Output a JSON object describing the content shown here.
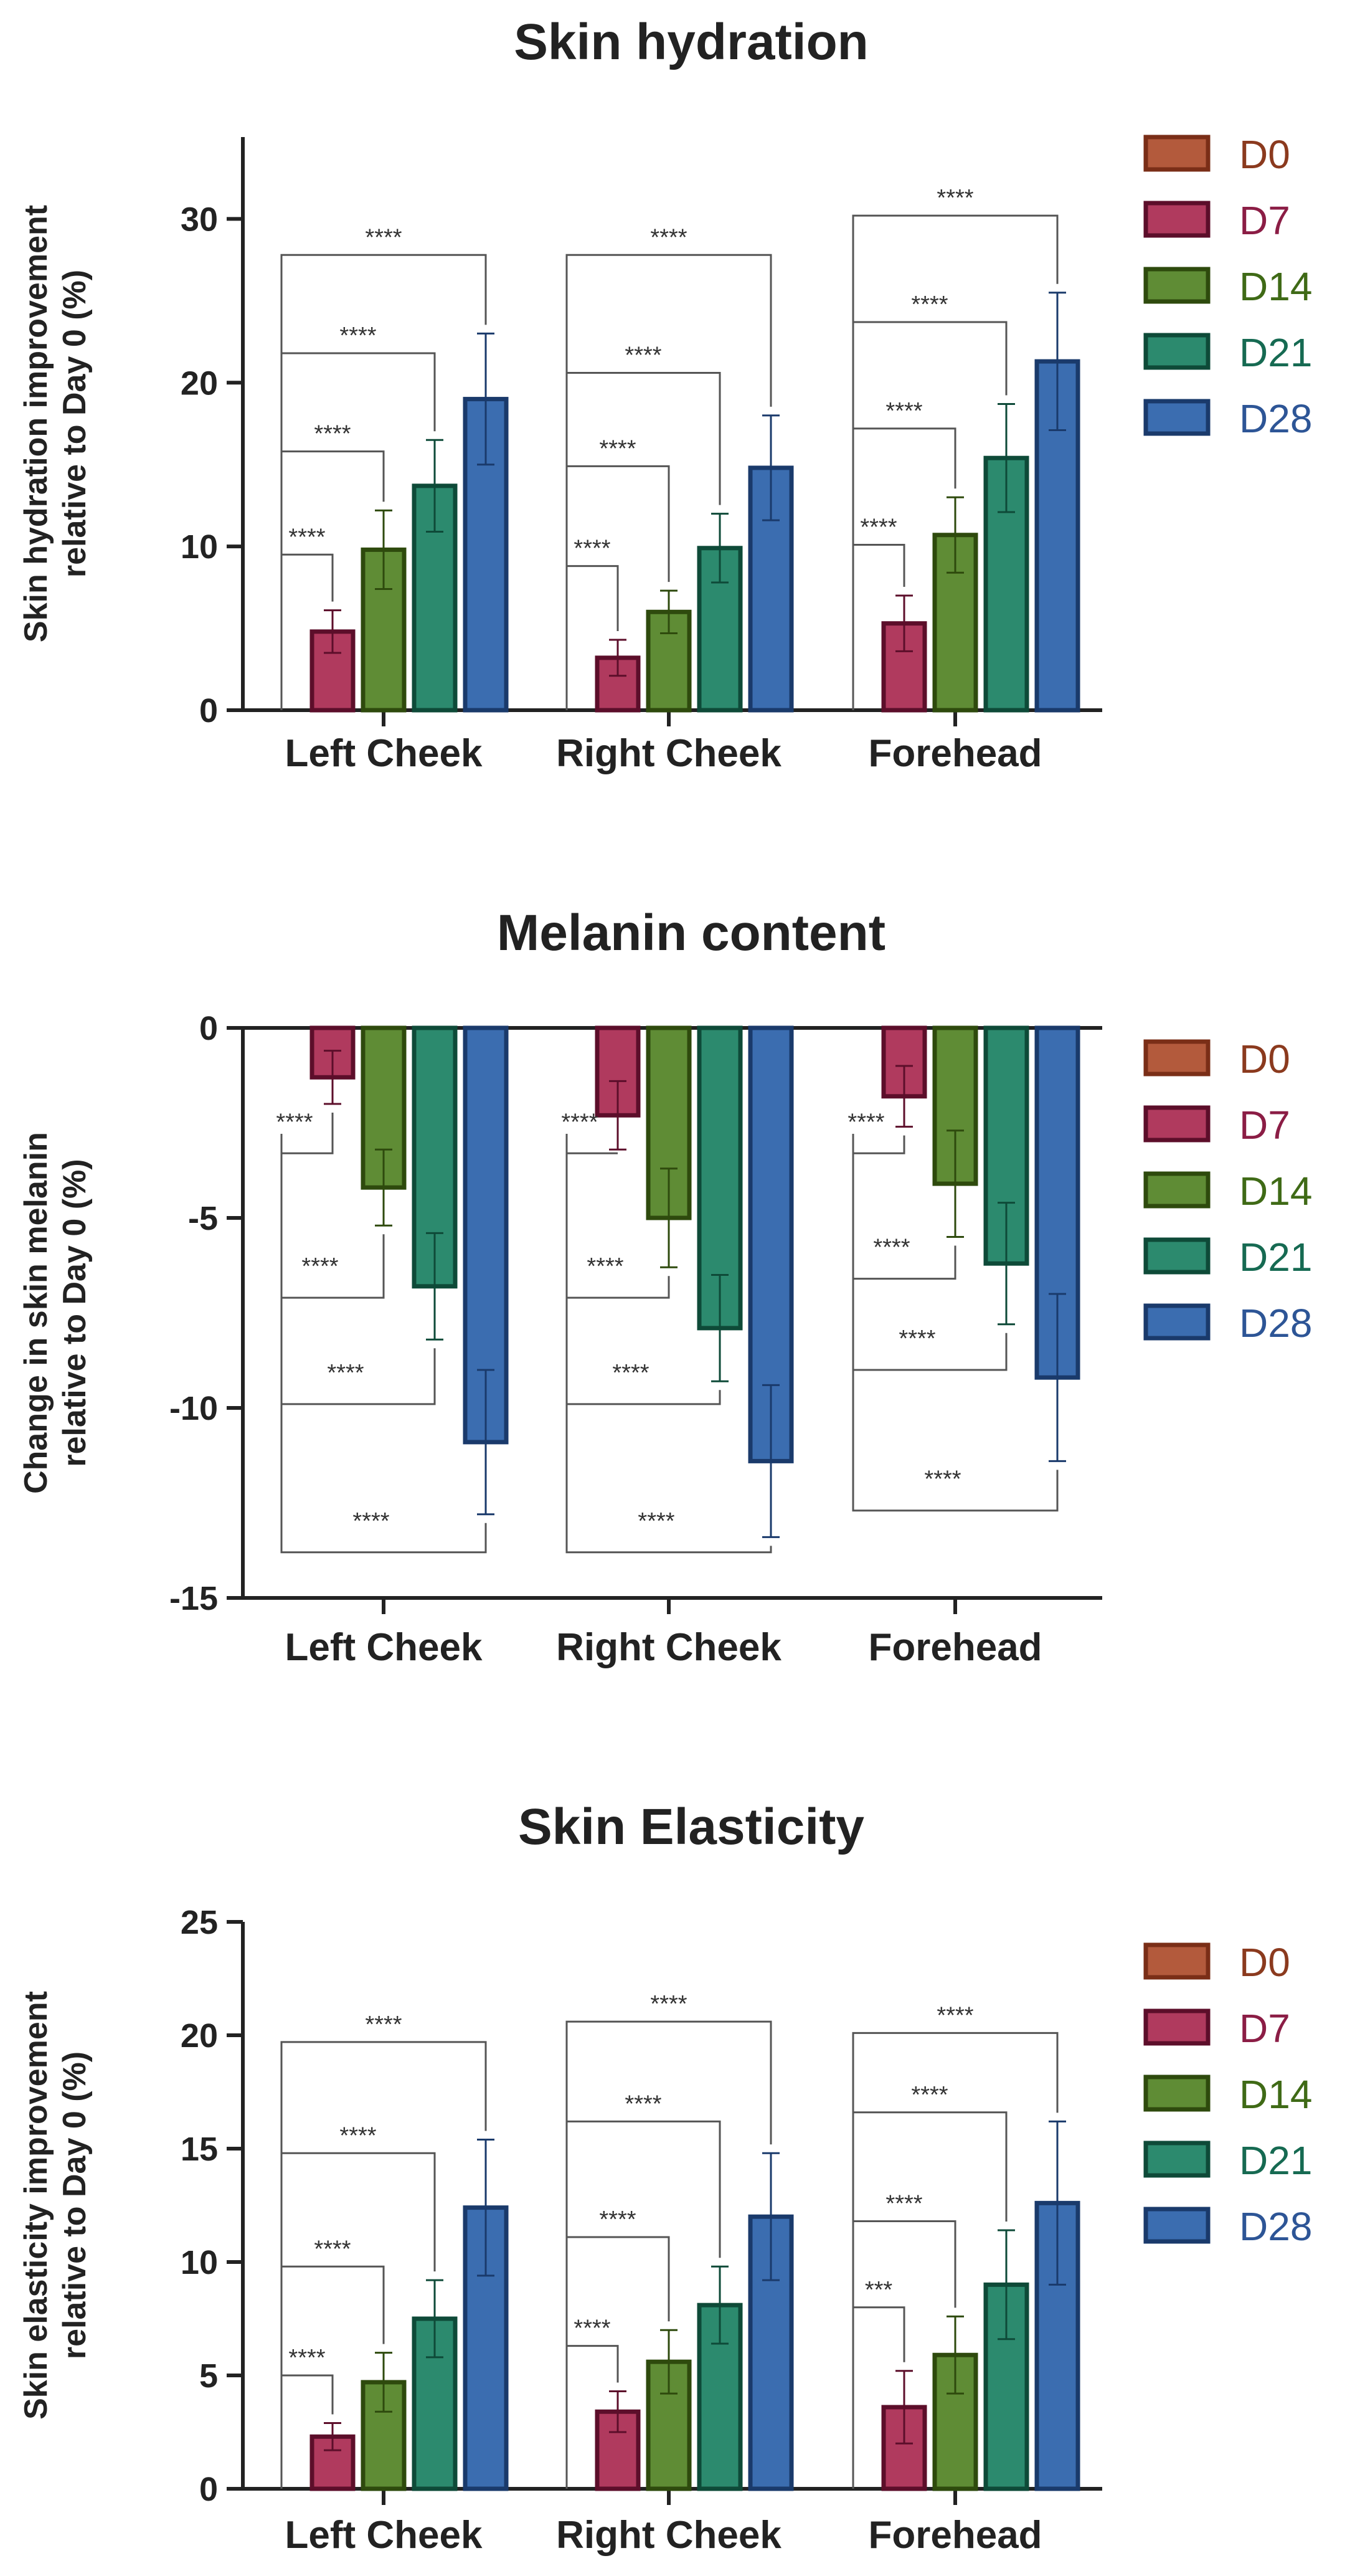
{
  "colors": {
    "D0": "#b35a3c",
    "D7": "#b03a5e",
    "D14": "#5f8c35",
    "D21": "#2c8a6e",
    "D28": "#3b6db0",
    "D0_text": "#8b3a1e",
    "D7_text": "#8b1d45",
    "D14_text": "#3f6a16",
    "D21_text": "#166a52",
    "D28_text": "#2d5596",
    "D0_edge": "#7a2e17",
    "D7_edge": "#5c0e2a",
    "D14_edge": "#2e4a0d",
    "D21_edge": "#0e4a38",
    "D28_edge": "#1a3a6b"
  },
  "chart_data": [
    {
      "type": "bar",
      "title": "Skin hydration",
      "ylabel": [
        "Skin hydration improvement",
        "relative to Day 0 (%)"
      ],
      "xlabel": "",
      "ylim": [
        0,
        35
      ],
      "yticks": [
        0,
        10,
        20,
        30
      ],
      "categories": [
        "Left Cheek",
        "Right Cheek",
        "Forehead"
      ],
      "legend": [
        "D0",
        "D7",
        "D14",
        "D21",
        "D28"
      ],
      "series": [
        {
          "name": "D0",
          "values": [
            0,
            0,
            0
          ],
          "errors": [
            0,
            0,
            0
          ]
        },
        {
          "name": "D7",
          "values": [
            4.8,
            3.2,
            5.3
          ],
          "errors": [
            1.3,
            1.1,
            1.7
          ]
        },
        {
          "name": "D14",
          "values": [
            9.8,
            6.0,
            10.7
          ],
          "errors": [
            2.4,
            1.3,
            2.3
          ]
        },
        {
          "name": "D21",
          "values": [
            13.7,
            9.9,
            15.4
          ],
          "errors": [
            2.8,
            2.1,
            3.3
          ]
        },
        {
          "name": "D28",
          "values": [
            19.0,
            14.8,
            21.3
          ],
          "errors": [
            4.0,
            3.2,
            4.2
          ]
        }
      ],
      "brackets": [
        {
          "category": 0,
          "to": "D7",
          "y": 9.5,
          "label": "****"
        },
        {
          "category": 0,
          "to": "D14",
          "y": 15.8,
          "label": "****"
        },
        {
          "category": 0,
          "to": "D21",
          "y": 21.8,
          "label": "****"
        },
        {
          "category": 0,
          "to": "D28",
          "y": 27.8,
          "label": "****"
        },
        {
          "category": 1,
          "to": "D7",
          "y": 8.8,
          "label": "****"
        },
        {
          "category": 1,
          "to": "D14",
          "y": 14.9,
          "label": "****"
        },
        {
          "category": 1,
          "to": "D21",
          "y": 20.6,
          "label": "****"
        },
        {
          "category": 1,
          "to": "D28",
          "y": 27.8,
          "label": "****"
        },
        {
          "category": 2,
          "to": "D7",
          "y": 10.1,
          "label": "****"
        },
        {
          "category": 2,
          "to": "D14",
          "y": 17.2,
          "label": "****"
        },
        {
          "category": 2,
          "to": "D21",
          "y": 23.7,
          "label": "****"
        },
        {
          "category": 2,
          "to": "D28",
          "y": 30.2,
          "label": "****"
        }
      ]
    },
    {
      "type": "bar",
      "title": "Melanin content",
      "ylabel": [
        "Change in skin melanin",
        "relative to Day 0 (%)"
      ],
      "xlabel": "",
      "ylim": [
        -15,
        0
      ],
      "yticks": [
        0,
        -5,
        -10,
        -15
      ],
      "categories": [
        "Left Cheek",
        "Right Cheek",
        "Forehead"
      ],
      "legend": [
        "D0",
        "D7",
        "D14",
        "D21",
        "D28"
      ],
      "series": [
        {
          "name": "D0",
          "values": [
            0,
            0,
            0
          ],
          "errors": [
            0,
            0,
            0
          ]
        },
        {
          "name": "D7",
          "values": [
            -1.3,
            -2.3,
            -1.8
          ],
          "errors": [
            0.7,
            0.9,
            0.8
          ]
        },
        {
          "name": "D14",
          "values": [
            -4.2,
            -5.0,
            -4.1
          ],
          "errors": [
            1.0,
            1.3,
            1.4
          ]
        },
        {
          "name": "D21",
          "values": [
            -6.8,
            -7.9,
            -6.2
          ],
          "errors": [
            1.4,
            1.4,
            1.6
          ]
        },
        {
          "name": "D28",
          "values": [
            -10.9,
            -11.4,
            -9.2
          ],
          "errors": [
            1.9,
            2.0,
            2.2
          ]
        }
      ],
      "brackets": [
        {
          "category": 0,
          "to": "D7",
          "y": -3.3,
          "label": "****"
        },
        {
          "category": 0,
          "to": "D14",
          "y": -7.1,
          "label": "****"
        },
        {
          "category": 0,
          "to": "D21",
          "y": -9.9,
          "label": "****"
        },
        {
          "category": 0,
          "to": "D28",
          "y": -13.8,
          "label": "****"
        },
        {
          "category": 1,
          "to": "D7",
          "y": -3.3,
          "label": "****"
        },
        {
          "category": 1,
          "to": "D14",
          "y": -7.1,
          "label": "****"
        },
        {
          "category": 1,
          "to": "D21",
          "y": -9.9,
          "label": "****"
        },
        {
          "category": 1,
          "to": "D28",
          "y": -13.8,
          "label": "****"
        },
        {
          "category": 2,
          "to": "D7",
          "y": -3.3,
          "label": "****"
        },
        {
          "category": 2,
          "to": "D14",
          "y": -6.6,
          "label": "****"
        },
        {
          "category": 2,
          "to": "D21",
          "y": -9.0,
          "label": "****"
        },
        {
          "category": 2,
          "to": "D28",
          "y": -12.7,
          "label": "****"
        }
      ]
    },
    {
      "type": "bar",
      "title": "Skin Elasticity",
      "ylabel": [
        "Skin elasticity improvement",
        "relative to  Day 0 (%)"
      ],
      "xlabel": "",
      "ylim": [
        0,
        25
      ],
      "yticks": [
        0,
        5,
        10,
        15,
        20,
        25
      ],
      "categories": [
        "Left Cheek",
        "Right Cheek",
        "Forehead"
      ],
      "legend": [
        "D0",
        "D7",
        "D14",
        "D21",
        "D28"
      ],
      "series": [
        {
          "name": "D0",
          "values": [
            0,
            0,
            0
          ],
          "errors": [
            0,
            0,
            0
          ]
        },
        {
          "name": "D7",
          "values": [
            2.3,
            3.4,
            3.6
          ],
          "errors": [
            0.6,
            0.9,
            1.6
          ]
        },
        {
          "name": "D14",
          "values": [
            4.7,
            5.6,
            5.9
          ],
          "errors": [
            1.3,
            1.4,
            1.7
          ]
        },
        {
          "name": "D21",
          "values": [
            7.5,
            8.1,
            9.0
          ],
          "errors": [
            1.7,
            1.7,
            2.4
          ]
        },
        {
          "name": "D28",
          "values": [
            12.4,
            12.0,
            12.6
          ],
          "errors": [
            3.0,
            2.8,
            3.6
          ]
        }
      ],
      "brackets": [
        {
          "category": 0,
          "to": "D7",
          "y": 5.0,
          "label": "****"
        },
        {
          "category": 0,
          "to": "D14",
          "y": 9.8,
          "label": "****"
        },
        {
          "category": 0,
          "to": "D21",
          "y": 14.8,
          "label": "****"
        },
        {
          "category": 0,
          "to": "D28",
          "y": 19.7,
          "label": "****"
        },
        {
          "category": 1,
          "to": "D7",
          "y": 6.3,
          "label": "****"
        },
        {
          "category": 1,
          "to": "D14",
          "y": 11.1,
          "label": "****"
        },
        {
          "category": 1,
          "to": "D21",
          "y": 16.2,
          "label": "****"
        },
        {
          "category": 1,
          "to": "D28",
          "y": 20.6,
          "label": "****"
        },
        {
          "category": 2,
          "to": "D7",
          "y": 8.0,
          "label": "***"
        },
        {
          "category": 2,
          "to": "D14",
          "y": 11.8,
          "label": "****"
        },
        {
          "category": 2,
          "to": "D21",
          "y": 16.6,
          "label": "****"
        },
        {
          "category": 2,
          "to": "D28",
          "y": 20.1,
          "label": "****"
        }
      ]
    }
  ]
}
